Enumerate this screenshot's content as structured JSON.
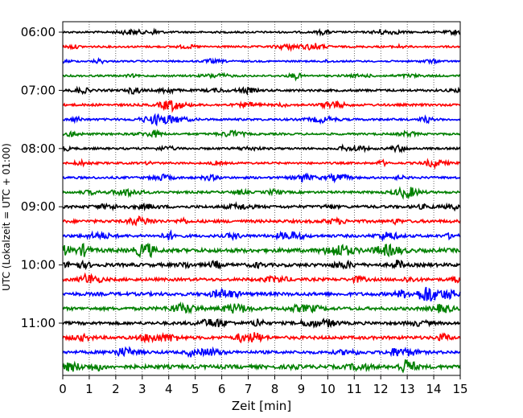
{
  "chart_data": {
    "type": "line",
    "title": "",
    "xlabel": "Zeit  [min]",
    "ylabel": "UTC (Lokalzeit = UTC + 01:00)",
    "xlim": [
      0,
      15
    ],
    "x_ticks": [
      "0",
      "1",
      "2",
      "3",
      "4",
      "5",
      "6",
      "7",
      "8",
      "9",
      "10",
      "11",
      "12",
      "13",
      "14",
      "15"
    ],
    "y_tick_labels": [
      "06:00",
      "07:00",
      "08:00",
      "09:00",
      "10:00",
      "11:00"
    ],
    "grid": "vertical dotted",
    "trace_interval_minutes": 15,
    "trace_colors": [
      "#000000",
      "#ff0000",
      "#0000ff",
      "#008000"
    ],
    "traces": [
      {
        "start": "06:00",
        "color": "#000000",
        "amplitude": 2.0
      },
      {
        "start": "06:15",
        "color": "#ff0000",
        "amplitude": 2.0
      },
      {
        "start": "06:30",
        "color": "#0000ff",
        "amplitude": 1.8
      },
      {
        "start": "06:45",
        "color": "#008000",
        "amplitude": 2.0
      },
      {
        "start": "07:00",
        "color": "#000000",
        "amplitude": 2.5
      },
      {
        "start": "07:15",
        "color": "#ff0000",
        "amplitude": 2.5
      },
      {
        "start": "07:30",
        "color": "#0000ff",
        "amplitude": 2.3
      },
      {
        "start": "07:45",
        "color": "#008000",
        "amplitude": 2.2
      },
      {
        "start": "08:00",
        "color": "#000000",
        "amplitude": 2.2
      },
      {
        "start": "08:15",
        "color": "#ff0000",
        "amplitude": 2.2
      },
      {
        "start": "08:30",
        "color": "#0000ff",
        "amplitude": 2.4
      },
      {
        "start": "08:45",
        "color": "#008000",
        "amplitude": 2.5
      },
      {
        "start": "09:00",
        "color": "#000000",
        "amplitude": 3.0
      },
      {
        "start": "09:15",
        "color": "#ff0000",
        "amplitude": 3.2
      },
      {
        "start": "09:30",
        "color": "#0000ff",
        "amplitude": 3.0
      },
      {
        "start": "09:45",
        "color": "#008000",
        "amplitude": 4.2
      },
      {
        "start": "10:00",
        "color": "#000000",
        "amplitude": 3.6
      },
      {
        "start": "10:15",
        "color": "#ff0000",
        "amplitude": 3.2
      },
      {
        "start": "10:30",
        "color": "#0000ff",
        "amplitude": 3.6
      },
      {
        "start": "10:45",
        "color": "#008000",
        "amplitude": 3.4
      },
      {
        "start": "11:00",
        "color": "#000000",
        "amplitude": 3.2
      },
      {
        "start": "11:15",
        "color": "#ff0000",
        "amplitude": 3.4
      },
      {
        "start": "11:30",
        "color": "#0000ff",
        "amplitude": 3.2
      },
      {
        "start": "11:45",
        "color": "#008000",
        "amplitude": 4.0
      }
    ]
  }
}
